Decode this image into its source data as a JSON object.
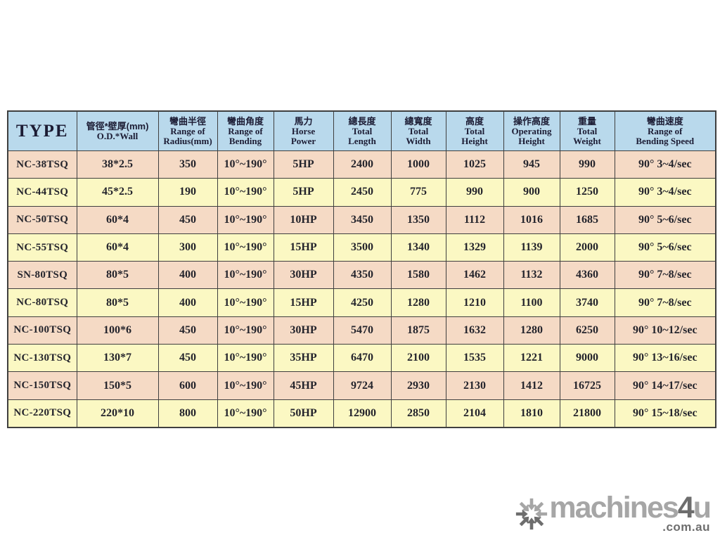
{
  "table": {
    "columns": [
      {
        "key": "type",
        "zh": null,
        "en_lines": [
          "TYPE"
        ],
        "type_header": true
      },
      {
        "key": "od-wall",
        "zh": "管徑*壁厚(mm)",
        "en_lines": [
          "O.D.*Wall"
        ]
      },
      {
        "key": "radius",
        "zh": "彎曲半徑",
        "en_lines": [
          "Range of",
          "Radius(mm)"
        ]
      },
      {
        "key": "bending",
        "zh": "彎曲角度",
        "en_lines": [
          "Range of",
          "Bending"
        ]
      },
      {
        "key": "horse-power",
        "zh": "馬力",
        "en_lines": [
          "Horse",
          "Power"
        ]
      },
      {
        "key": "total-length",
        "zh": "總長度",
        "en_lines": [
          "Total",
          "Length"
        ]
      },
      {
        "key": "total-width",
        "zh": "總寬度",
        "en_lines": [
          "Total",
          "Width"
        ]
      },
      {
        "key": "total-height",
        "zh": "高度",
        "en_lines": [
          "Total",
          "Height"
        ]
      },
      {
        "key": "operating-height",
        "zh": "操作高度",
        "en_lines": [
          "Operating",
          "Height"
        ]
      },
      {
        "key": "total-weight",
        "zh": "重量",
        "en_lines": [
          "Total",
          "Weight"
        ]
      },
      {
        "key": "bending-speed",
        "zh": "彎曲速度",
        "en_lines": [
          "Range of",
          "Bending Speed"
        ]
      }
    ],
    "rows": [
      [
        "NC-38TSQ",
        "38*2.5",
        "350",
        "10°~190°",
        "5HP",
        "2400",
        "1000",
        "1025",
        "945",
        "990",
        "90° 3~4/sec"
      ],
      [
        "NC-44TSQ",
        "45*2.5",
        "190",
        "10°~190°",
        "5HP",
        "2450",
        "775",
        "990",
        "900",
        "1250",
        "90° 3~4/sec"
      ],
      [
        "NC-50TSQ",
        "60*4",
        "450",
        "10°~190°",
        "10HP",
        "3450",
        "1350",
        "1112",
        "1016",
        "1685",
        "90° 5~6/sec"
      ],
      [
        "NC-55TSQ",
        "60*4",
        "300",
        "10°~190°",
        "15HP",
        "3500",
        "1340",
        "1329",
        "1139",
        "2000",
        "90° 5~6/sec"
      ],
      [
        "SN-80TSQ",
        "80*5",
        "400",
        "10°~190°",
        "30HP",
        "4350",
        "1580",
        "1462",
        "1132",
        "4360",
        "90° 7~8/sec"
      ],
      [
        "NC-80TSQ",
        "80*5",
        "400",
        "10°~190°",
        "15HP",
        "4250",
        "1280",
        "1210",
        "1100",
        "3740",
        "90° 7~8/sec"
      ],
      [
        "NC-100TSQ",
        "100*6",
        "450",
        "10°~190°",
        "30HP",
        "5470",
        "1875",
        "1632",
        "1280",
        "6250",
        "90° 10~12/sec"
      ],
      [
        "NC-130TSQ",
        "130*7",
        "450",
        "10°~190°",
        "35HP",
        "6470",
        "2100",
        "1535",
        "1221",
        "9000",
        "90° 13~16/sec"
      ],
      [
        "NC-150TSQ",
        "150*5",
        "600",
        "10°~190°",
        "45HP",
        "9724",
        "2930",
        "2130",
        "1412",
        "16725",
        "90° 14~17/sec"
      ],
      [
        "NC-220TSQ",
        "220*10",
        "800",
        "10°~190°",
        "50HP",
        "12900",
        "2850",
        "2104",
        "1810",
        "21800",
        "90° 15~18/sec"
      ]
    ]
  },
  "logo": {
    "machines": "machines",
    "four": "4",
    "u": "u",
    "domain": ".com.au"
  },
  "colors": {
    "header_bg": "#b9d9ec",
    "row_peach": "#f5dac5",
    "row_yellow": "#fbf8c3",
    "border": "#3f3f3f",
    "logo_light": "#a6a6a6",
    "logo_dark": "#6d6d6d"
  }
}
